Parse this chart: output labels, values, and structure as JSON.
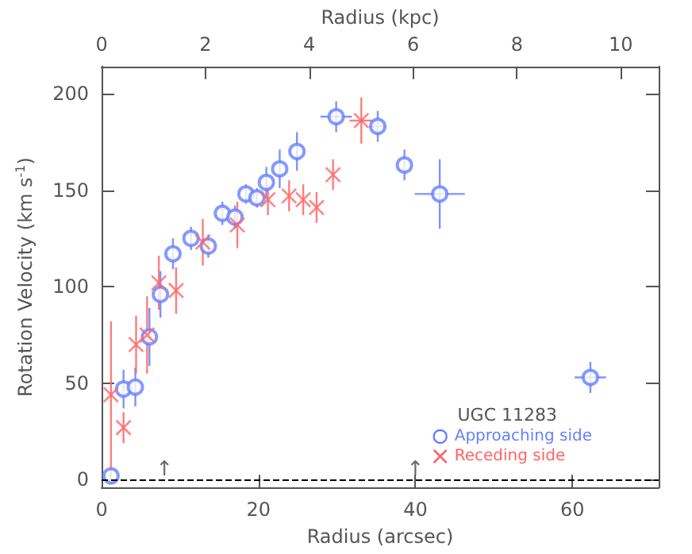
{
  "chart_data": {
    "type": "scatter",
    "xlabel": "Radius (arcsec)",
    "ylabel": "Rotation Velocity (km s$^{-1}$)",
    "x2label": "Radius (kpc)",
    "legend_title": "UGC 11283",
    "xlim": [
      0,
      71
    ],
    "xticks": [
      0,
      20,
      40,
      60
    ],
    "x2lim": [
      0,
      10.73
    ],
    "x2ticks": [
      0,
      2,
      4,
      6,
      8,
      10
    ],
    "ylim": [
      -4,
      214
    ],
    "yticks": [
      0,
      50,
      100,
      150,
      200
    ],
    "series": [
      {
        "name": "Approaching side",
        "color": "#6680ff",
        "marker": "circle",
        "x": [
          1.2,
          2.8,
          4.3,
          6.1,
          7.5,
          9.1,
          11.4,
          13.6,
          15.4,
          17,
          18.4,
          19.8,
          21,
          22.7,
          24.9,
          29.9,
          35.2,
          38.6,
          43.1,
          62.3
        ],
        "values": [
          2,
          47,
          48,
          74,
          96,
          117,
          125,
          121,
          138,
          136,
          148,
          146,
          154,
          161,
          170,
          188,
          183,
          163,
          148,
          53
        ],
        "errors": [
          4,
          10,
          10,
          15,
          12,
          8,
          6,
          6,
          6,
          6,
          5,
          5,
          8,
          10,
          10,
          8,
          8,
          8,
          18,
          8
        ],
        "xerrors": [
          null,
          null,
          null,
          null,
          null,
          null,
          null,
          null,
          null,
          null,
          null,
          null,
          null,
          null,
          null,
          2,
          1,
          null,
          3.2,
          2
        ]
      },
      {
        "name": "Receding side",
        "color": "#ff6666",
        "marker": "cross",
        "x": [
          1.2,
          2.8,
          4.4,
          5.8,
          7.3,
          9.5,
          12.9,
          17.3,
          21.2,
          23.9,
          25.7,
          27.4,
          29.5,
          33.1
        ],
        "values": [
          44,
          27,
          70,
          75,
          102,
          98,
          123,
          132,
          145,
          147,
          145,
          141,
          158,
          186
        ],
        "errors": [
          [
            2,
            82
          ],
          8,
          15,
          20,
          14,
          12,
          12,
          12,
          8,
          8,
          8,
          8,
          8,
          12
        ],
        "xerrors": [
          null,
          null,
          null,
          null,
          null,
          null,
          null,
          null,
          null,
          null,
          null,
          null,
          null,
          1.5
        ]
      }
    ],
    "ref_lines": [
      {
        "axis": "y",
        "value": 0,
        "color": "#000000",
        "line_style": "dashed"
      }
    ],
    "annotations": [
      {
        "text": "↑",
        "x": 8,
        "y": 0
      },
      {
        "text": "↑",
        "x": 40,
        "y": 0
      }
    ],
    "legend": "bottom right"
  }
}
